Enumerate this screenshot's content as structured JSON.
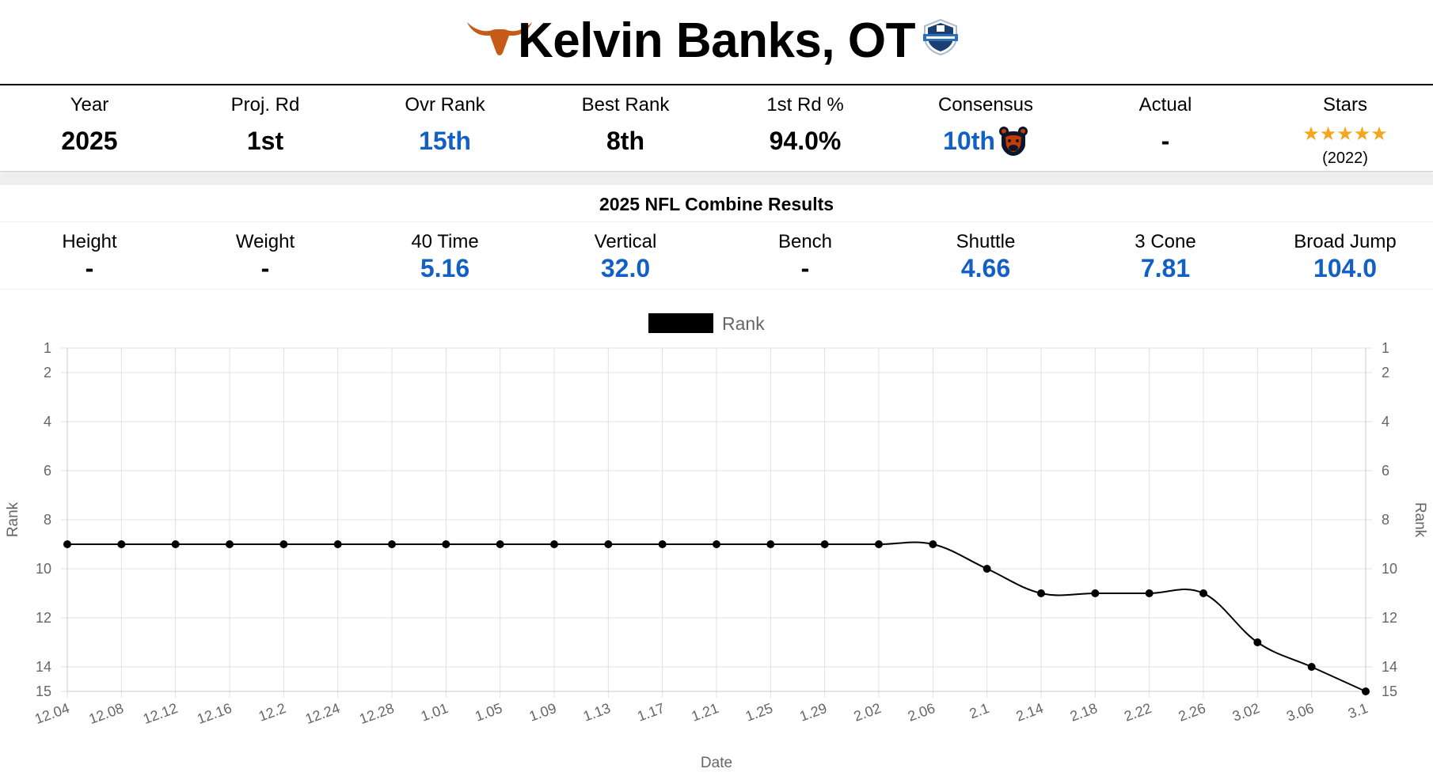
{
  "header": {
    "title": "Kelvin Banks, OT",
    "team_logo": "texas-longhorn-icon",
    "combine_logo": "nfl-combine-icon",
    "team_color": "#c65a17"
  },
  "stats": {
    "year": {
      "label": "Year",
      "value": "2025"
    },
    "proj_rd": {
      "label": "Proj. Rd",
      "value": "1st"
    },
    "ovr_rank": {
      "label": "Ovr Rank",
      "value": "15th"
    },
    "best_rank": {
      "label": "Best Rank",
      "value": "8th"
    },
    "first_rd_pct": {
      "label": "1st Rd %",
      "value": "94.0%"
    },
    "consensus": {
      "label": "Consensus",
      "value": "10th",
      "team_logo": "chicago-bears-icon"
    },
    "actual": {
      "label": "Actual",
      "value": "-"
    },
    "stars": {
      "label": "Stars",
      "value": "★★★★★",
      "rating": 5,
      "year": "(2022)"
    }
  },
  "combine": {
    "title": "2025 NFL Combine Results",
    "height": {
      "label": "Height",
      "value": "-"
    },
    "weight": {
      "label": "Weight",
      "value": "-"
    },
    "forty": {
      "label": "40 Time",
      "value": "5.16"
    },
    "vertical": {
      "label": "Vertical",
      "value": "32.0"
    },
    "bench": {
      "label": "Bench",
      "value": "-"
    },
    "shuttle": {
      "label": "Shuttle",
      "value": "4.66"
    },
    "three_cone": {
      "label": "3 Cone",
      "value": "7.81"
    },
    "broad_jump": {
      "label": "Broad Jump",
      "value": "104.0"
    }
  },
  "colors": {
    "accent_blue": "#1260c6",
    "star": "#f7a51d",
    "line": "#000000",
    "grid": "#e0e0e0"
  },
  "chart_data": {
    "type": "line",
    "legend": {
      "label": "Rank",
      "position": "top"
    },
    "xlabel": "Date",
    "ylabel": "Rank",
    "ylabel_right": "Rank",
    "y_reversed": true,
    "ylim": [
      1,
      15
    ],
    "y_ticks": [
      1,
      2,
      4,
      6,
      8,
      10,
      12,
      14,
      15
    ],
    "grid": true,
    "categories": [
      "12.04",
      "12.08",
      "12.12",
      "12.16",
      "12.2",
      "12.24",
      "12.28",
      "1.01",
      "1.05",
      "1.09",
      "1.13",
      "1.17",
      "1.21",
      "1.25",
      "1.29",
      "2.02",
      "2.06",
      "2.1",
      "2.14",
      "2.18",
      "2.22",
      "2.26",
      "3.02",
      "3.06",
      "3.1"
    ],
    "series": [
      {
        "name": "Rank",
        "values": [
          9,
          9,
          9,
          9,
          9,
          9,
          9,
          9,
          9,
          9,
          9,
          9,
          9,
          9,
          9,
          9,
          9,
          10,
          11,
          11,
          11,
          11,
          13,
          14,
          15
        ]
      }
    ]
  }
}
